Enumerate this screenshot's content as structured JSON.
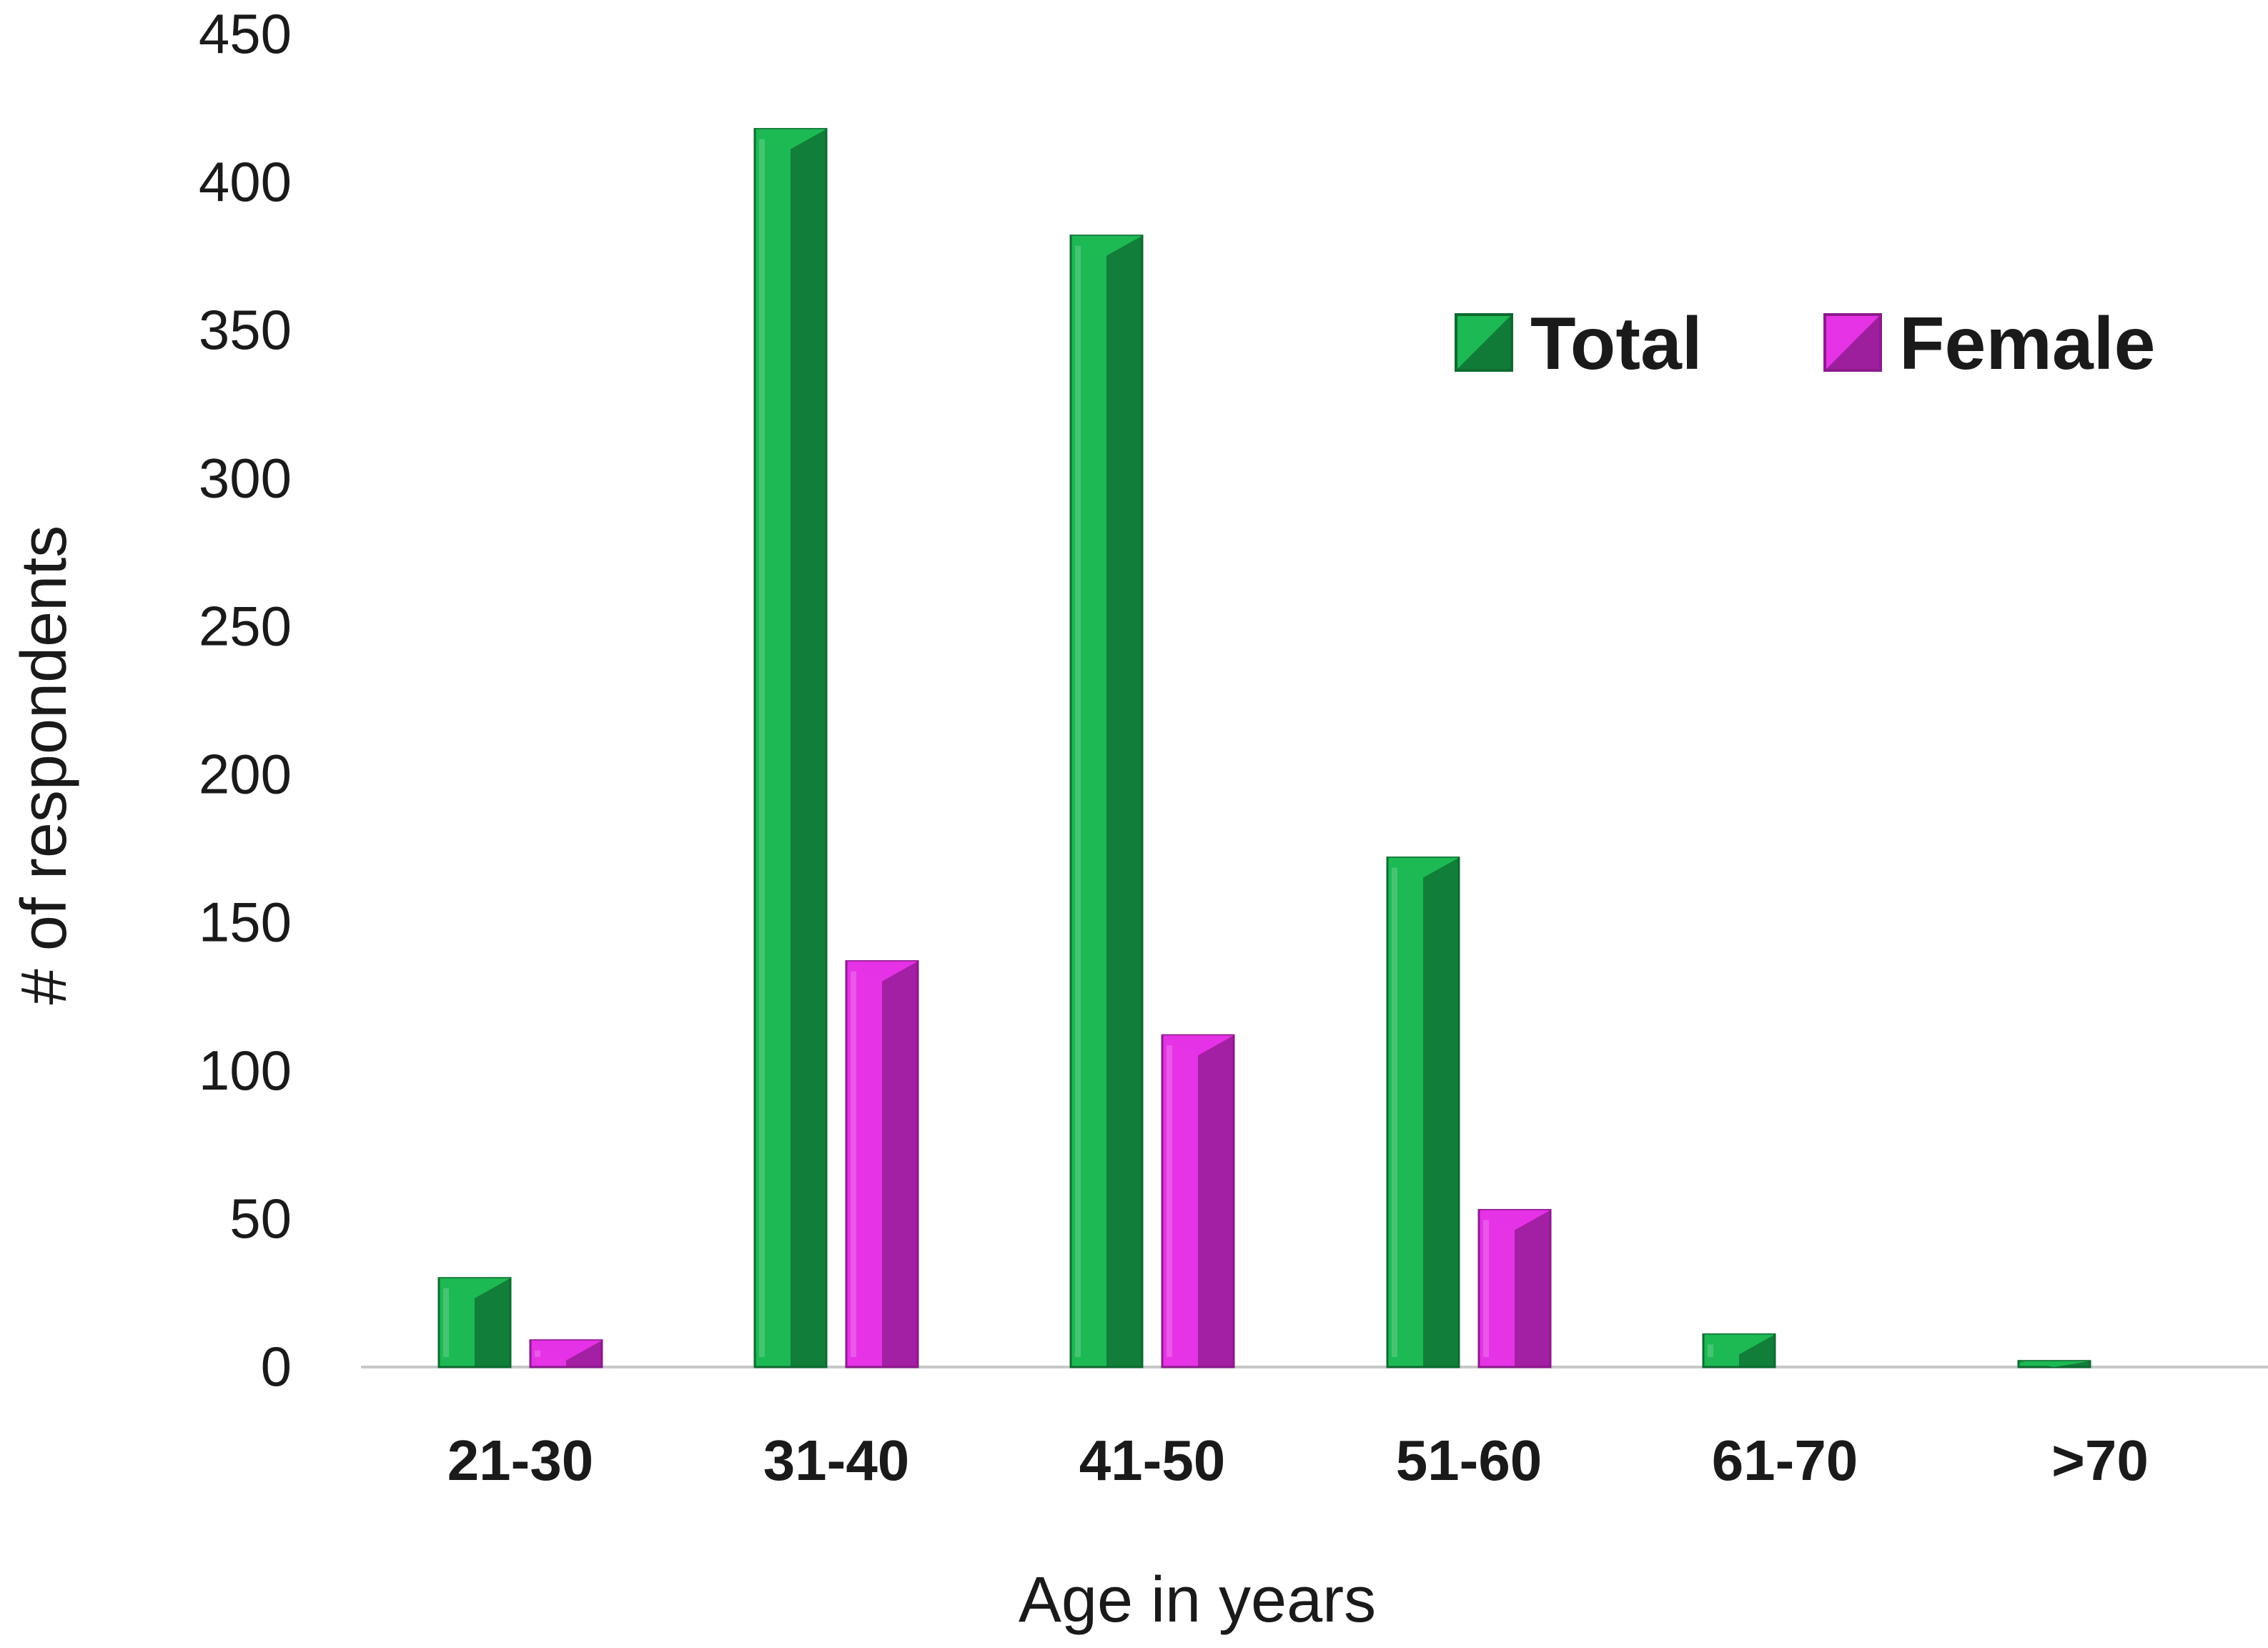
{
  "colors": {
    "total": "#1db954",
    "total_dark": "#0e6b30",
    "female": "#e633e6",
    "female_dark": "#8c1a8c",
    "axis": "#c8c8c8"
  },
  "chart_data": {
    "type": "bar",
    "categories": [
      "21-30",
      "31-40",
      "41-50",
      "51-60",
      "61-70",
      ">70"
    ],
    "series": [
      {
        "name": "Total",
        "values": [
          30,
          418,
          382,
          172,
          11,
          2
        ]
      },
      {
        "name": "Female",
        "values": [
          9,
          137,
          112,
          53,
          0,
          0
        ]
      }
    ],
    "yticks": [
      0,
      50,
      100,
      150,
      200,
      250,
      300,
      350,
      400,
      450
    ],
    "ylim": [
      0,
      450
    ],
    "xlabel": "Age in years",
    "ylabel": "# of respondents",
    "legend_position": "top-right",
    "grid": false
  }
}
